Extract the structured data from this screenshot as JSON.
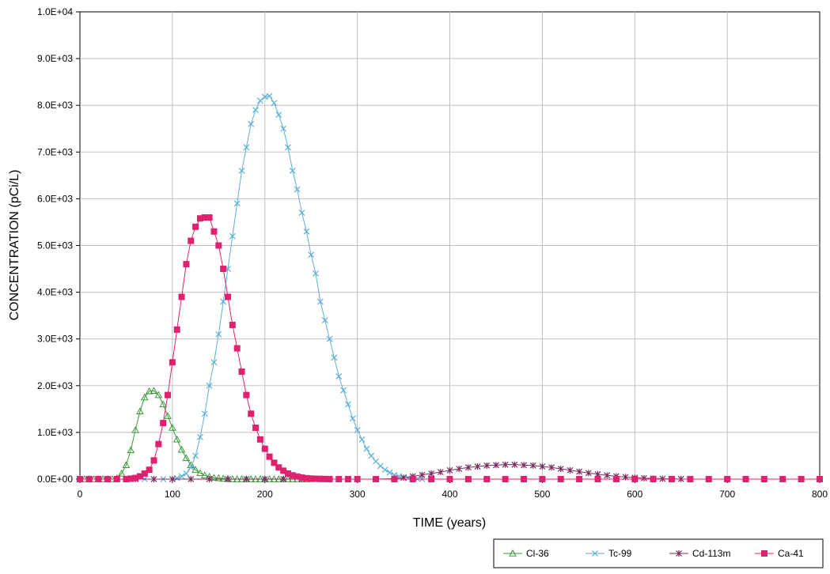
{
  "chart_data": {
    "type": "line",
    "title": "",
    "xlabel": "TIME (years)",
    "ylabel": "CONCENTRATION (pCi/L)",
    "xlim": [
      0,
      800
    ],
    "ylim": [
      0,
      10000
    ],
    "x_ticks": [
      0,
      100,
      200,
      300,
      400,
      500,
      600,
      700,
      800
    ],
    "x_tick_labels": [
      "0",
      "100",
      "200",
      "300",
      "400",
      "500",
      "600",
      "700",
      "800"
    ],
    "y_ticks": [
      0,
      1000,
      2000,
      3000,
      4000,
      5000,
      6000,
      7000,
      8000,
      9000,
      10000
    ],
    "y_tick_labels": [
      "0.0E+00",
      "1.0E+03",
      "2.0E+03",
      "3.0E+03",
      "4.0E+03",
      "5.0E+03",
      "6.0E+03",
      "7.0E+03",
      "8.0E+03",
      "9.0E+03",
      "1.0E+04"
    ],
    "grid": true,
    "legend_position": "bottom-right",
    "series": [
      {
        "name": "Cl-36",
        "color": "#3a9a3a",
        "marker": "triangle-open",
        "x": [
          0,
          5,
          10,
          15,
          20,
          25,
          30,
          35,
          40,
          45,
          50,
          55,
          60,
          65,
          70,
          75,
          80,
          85,
          90,
          95,
          100,
          105,
          110,
          115,
          120,
          125,
          130,
          135,
          140,
          145,
          150,
          155,
          160,
          165,
          170,
          175,
          180,
          185,
          190,
          195,
          200,
          205,
          210,
          215,
          220,
          225,
          230,
          235,
          240,
          245,
          250
        ],
        "y": [
          0,
          0,
          0,
          0,
          0,
          0,
          0,
          0,
          20,
          120,
          300,
          620,
          1050,
          1450,
          1750,
          1880,
          1890,
          1800,
          1600,
          1350,
          1100,
          850,
          630,
          450,
          300,
          200,
          130,
          80,
          50,
          30,
          20,
          10,
          5,
          0,
          0,
          0,
          0,
          0,
          0,
          0,
          0,
          0,
          0,
          0,
          0,
          0,
          0,
          0,
          0,
          0,
          0
        ]
      },
      {
        "name": "Tc-99",
        "color": "#5bafd8",
        "marker": "x",
        "x": [
          0,
          10,
          20,
          30,
          40,
          50,
          60,
          70,
          80,
          90,
          100,
          105,
          110,
          115,
          120,
          125,
          130,
          135,
          140,
          145,
          150,
          155,
          160,
          165,
          170,
          175,
          180,
          185,
          190,
          195,
          200,
          205,
          210,
          215,
          220,
          225,
          230,
          235,
          240,
          245,
          250,
          255,
          260,
          265,
          270,
          275,
          280,
          285,
          290,
          295,
          300,
          305,
          310,
          315,
          320,
          325,
          330,
          335,
          340,
          345,
          350,
          355,
          360,
          365,
          370
        ],
        "y": [
          0,
          0,
          0,
          0,
          0,
          0,
          0,
          0,
          0,
          0,
          0,
          20,
          60,
          120,
          250,
          500,
          900,
          1400,
          2000,
          2500,
          3100,
          3800,
          4500,
          5200,
          5900,
          6600,
          7100,
          7600,
          7900,
          8100,
          8180,
          8200,
          8050,
          7800,
          7500,
          7100,
          6600,
          6200,
          5700,
          5300,
          4800,
          4400,
          3800,
          3400,
          3000,
          2600,
          2200,
          1900,
          1600,
          1300,
          1050,
          850,
          650,
          500,
          380,
          280,
          200,
          140,
          90,
          60,
          40,
          25,
          15,
          5,
          0
        ]
      },
      {
        "name": "Cd-113m",
        "color": "#7a2a5e",
        "marker": "asterisk",
        "x": [
          0,
          20,
          40,
          60,
          80,
          100,
          120,
          140,
          160,
          180,
          200,
          220,
          240,
          260,
          280,
          300,
          320,
          340,
          350,
          360,
          370,
          380,
          390,
          400,
          410,
          420,
          430,
          440,
          450,
          460,
          470,
          480,
          490,
          500,
          510,
          520,
          530,
          540,
          550,
          560,
          570,
          580,
          590,
          600,
          610,
          620,
          630,
          640,
          650,
          660,
          680,
          700,
          720,
          740,
          760,
          780,
          800
        ],
        "y": [
          0,
          0,
          0,
          0,
          0,
          0,
          0,
          0,
          0,
          0,
          0,
          0,
          0,
          0,
          0,
          0,
          0,
          10,
          30,
          60,
          90,
          120,
          150,
          190,
          220,
          250,
          270,
          290,
          300,
          310,
          310,
          300,
          290,
          270,
          250,
          220,
          190,
          160,
          130,
          105,
          80,
          60,
          45,
          30,
          20,
          12,
          8,
          5,
          3,
          0,
          0,
          0,
          0,
          0,
          0,
          0,
          0
        ]
      },
      {
        "name": "Ca-41",
        "color": "#e0216f",
        "marker": "square",
        "x": [
          0,
          10,
          20,
          30,
          40,
          50,
          55,
          60,
          65,
          70,
          75,
          80,
          85,
          90,
          95,
          100,
          105,
          110,
          115,
          120,
          125,
          130,
          135,
          140,
          145,
          150,
          155,
          160,
          165,
          170,
          175,
          180,
          185,
          190,
          195,
          200,
          205,
          210,
          215,
          220,
          225,
          230,
          235,
          240,
          245,
          250,
          255,
          260,
          265,
          270,
          280,
          290,
          300,
          320,
          340,
          360,
          380,
          400,
          420,
          440,
          460,
          480,
          500,
          520,
          540,
          560,
          580,
          600,
          620,
          640,
          660,
          680,
          700,
          720,
          740,
          760,
          780,
          800
        ],
        "y": [
          0,
          0,
          0,
          0,
          0,
          0,
          10,
          25,
          60,
          120,
          200,
          400,
          750,
          1200,
          1800,
          2500,
          3200,
          3900,
          4600,
          5100,
          5400,
          5580,
          5600,
          5600,
          5300,
          5000,
          4500,
          3900,
          3300,
          2800,
          2300,
          1800,
          1400,
          1100,
          850,
          650,
          480,
          350,
          250,
          180,
          120,
          80,
          55,
          35,
          20,
          12,
          8,
          5,
          3,
          0,
          0,
          0,
          0,
          0,
          0,
          0,
          0,
          0,
          0,
          0,
          0,
          0,
          0,
          0,
          0,
          0,
          0,
          0,
          0,
          0,
          0,
          0,
          0,
          0,
          0,
          0,
          0,
          0
        ]
      }
    ]
  }
}
